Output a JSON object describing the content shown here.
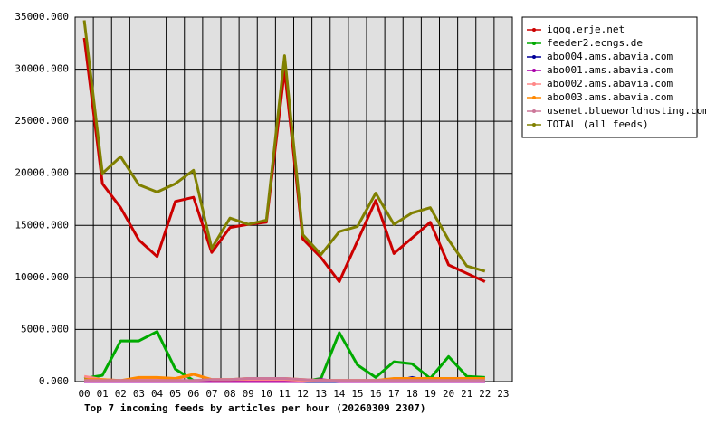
{
  "chart_data": {
    "type": "line",
    "title": "Top 7 incoming feeds by articles per hour (20260309 2307)",
    "categories": [
      "00",
      "01",
      "02",
      "03",
      "04",
      "05",
      "06",
      "07",
      "08",
      "09",
      "10",
      "11",
      "12",
      "13",
      "14",
      "15",
      "16",
      "17",
      "18",
      "19",
      "20",
      "21",
      "22",
      "23"
    ],
    "ylim": [
      0,
      35000
    ],
    "yticks": [
      {
        "value": 0,
        "label": "0.000"
      },
      {
        "value": 5000,
        "label": "5000.000"
      },
      {
        "value": 10000,
        "label": "10000.000"
      },
      {
        "value": 15000,
        "label": "15000.000"
      },
      {
        "value": 20000,
        "label": "20000.000"
      },
      {
        "value": 25000,
        "label": "25000.000"
      },
      {
        "value": 30000,
        "label": "30000.000"
      },
      {
        "value": 35000,
        "label": "35000.000"
      }
    ],
    "grid": true,
    "legend": "right",
    "series": [
      {
        "name": "iqoq.erje.net",
        "color": "#cc0000",
        "values": [
          33000,
          19000,
          16700,
          13600,
          12000,
          17300,
          17700,
          12400,
          14800,
          15100,
          15300,
          29900,
          13700,
          11900,
          9600,
          13500,
          17400,
          12300,
          13800,
          15300,
          11200,
          10400,
          9600,
          null
        ]
      },
      {
        "name": "feeder2.ecngs.de",
        "color": "#00aa00",
        "values": [
          300,
          600,
          3900,
          3900,
          4800,
          1200,
          100,
          0,
          0,
          0,
          0,
          0,
          0,
          300,
          4700,
          1600,
          400,
          1900,
          1700,
          300,
          2400,
          500,
          400,
          null
        ]
      },
      {
        "name": "abo004.ams.abavia.com",
        "color": "#000099",
        "values": [
          0,
          0,
          0,
          0,
          0,
          0,
          0,
          0,
          0,
          0,
          0,
          0,
          0,
          0,
          0,
          0,
          0,
          0,
          400,
          0,
          0,
          0,
          0,
          null
        ]
      },
      {
        "name": "abo001.ams.abavia.com",
        "color": "#aa00aa",
        "values": [
          0,
          0,
          0,
          0,
          0,
          0,
          0,
          0,
          0,
          0,
          0,
          0,
          0,
          200,
          0,
          0,
          0,
          0,
          0,
          0,
          0,
          0,
          0,
          null
        ]
      },
      {
        "name": "abo002.ams.abavia.com",
        "color": "#ff8888",
        "values": [
          500,
          200,
          100,
          200,
          300,
          200,
          700,
          200,
          200,
          200,
          200,
          200,
          100,
          100,
          100,
          100,
          100,
          200,
          200,
          200,
          200,
          200,
          200,
          null
        ]
      },
      {
        "name": "abo003.ams.abavia.com",
        "color": "#ff8800",
        "values": [
          200,
          200,
          100,
          400,
          400,
          300,
          700,
          200,
          200,
          300,
          300,
          300,
          200,
          100,
          100,
          100,
          100,
          300,
          300,
          300,
          300,
          300,
          300,
          null
        ]
      },
      {
        "name": "usenet.blueworldhosting.com",
        "color": "#cc7799",
        "values": [
          100,
          100,
          100,
          100,
          100,
          100,
          100,
          200,
          200,
          300,
          300,
          300,
          200,
          100,
          100,
          100,
          100,
          100,
          100,
          100,
          100,
          100,
          100,
          null
        ]
      },
      {
        "name": "TOTAL (all feeds)",
        "color": "#808000",
        "values": [
          34700,
          20000,
          21600,
          18900,
          18200,
          19000,
          20300,
          12800,
          15700,
          15100,
          15500,
          31300,
          14100,
          12200,
          14400,
          14900,
          18100,
          15100,
          16200,
          16700,
          13600,
          11100,
          10600,
          null
        ]
      }
    ]
  }
}
